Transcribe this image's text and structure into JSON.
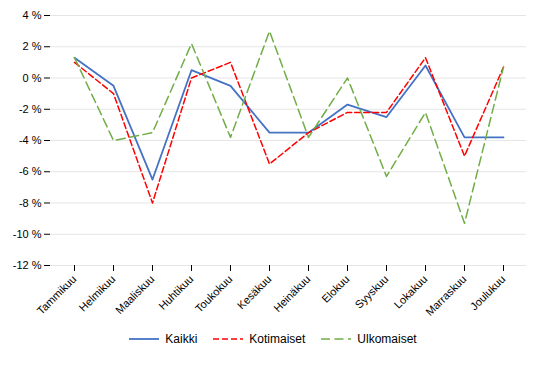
{
  "chart_data": {
    "type": "line",
    "categories": [
      "Tammikuu",
      "Helmikuu",
      "Maaliskuu",
      "Huhtikuu",
      "Toukokuu",
      "Kesäkuu",
      "Heinäkuu",
      "Elokuu",
      "Syyskuu",
      "Lokakuu",
      "Marraskuu",
      "Joulukuu"
    ],
    "series": [
      {
        "name": "Kaikki",
        "color": "#4472C4",
        "line_style": "solid",
        "values": [
          1.3,
          -0.5,
          -6.5,
          0.5,
          -0.5,
          -3.5,
          -3.5,
          -1.7,
          -2.5,
          0.8,
          -3.8,
          -3.8
        ]
      },
      {
        "name": "Kotimaiset",
        "color": "#FF0000",
        "line_style": "dashed",
        "values": [
          1.0,
          -1.0,
          -8.0,
          0.0,
          1.0,
          -5.5,
          -3.5,
          -2.2,
          -2.2,
          1.3,
          -5.0,
          0.7
        ]
      },
      {
        "name": "Ulkomaiset",
        "color": "#70AD47",
        "line_style": "longdashed",
        "values": [
          1.3,
          -4.0,
          -3.5,
          2.2,
          -3.8,
          3.0,
          -3.8,
          0.0,
          -6.3,
          -2.2,
          -9.3,
          0.7
        ]
      }
    ],
    "ylim": [
      -12,
      4
    ],
    "yticks": [
      {
        "value": -12,
        "label": "-12 %"
      },
      {
        "value": -10,
        "label": "-10 %"
      },
      {
        "value": -8,
        "label": "-8 %"
      },
      {
        "value": -6,
        "label": "-6 %"
      },
      {
        "value": -4,
        "label": "-4 %"
      },
      {
        "value": -2,
        "label": "-2 %"
      },
      {
        "value": 0,
        "label": "0 %"
      },
      {
        "value": 2,
        "label": "2 %"
      },
      {
        "value": 4,
        "label": "4 %"
      }
    ],
    "grid": true,
    "legend": "bottom"
  }
}
